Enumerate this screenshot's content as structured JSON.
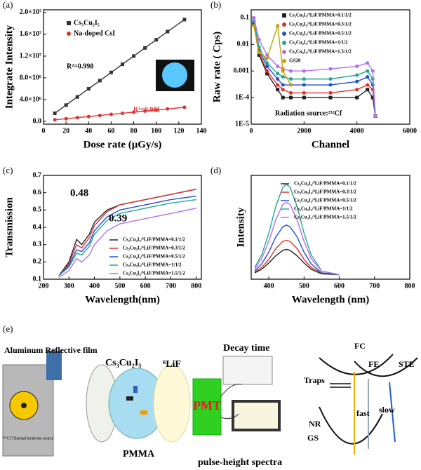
{
  "chart_data": [
    {
      "type": "line",
      "label": "(a)",
      "x_label": "Dose rate (μGy/s)",
      "y_label": "Integrate Intensity",
      "x": [
        10,
        20,
        30,
        40,
        50,
        60,
        70,
        80,
        90,
        100,
        110,
        125
      ],
      "series": [
        {
          "name": "Cs₃Cu₂I₅",
          "color": "#333333",
          "marker": "square",
          "values": [
            1500000,
            3000000,
            4500000,
            6000000,
            7500000,
            9000000,
            10500000,
            12000000,
            13500000,
            15000000,
            16500000,
            18700000
          ]
        },
        {
          "name": "Na-doped CsI",
          "color": "#e03030",
          "marker": "circle",
          "values": [
            300000,
            500000,
            700000,
            900000,
            1100000,
            1300000,
            1500000,
            1700000,
            1900000,
            2100000,
            2300000,
            2600000
          ]
        }
      ],
      "annotations": [
        "R²=0.998",
        "R²=0.981"
      ],
      "xlim": [
        0,
        140
      ],
      "xticks": [
        0,
        20,
        40,
        60,
        80,
        100,
        120,
        140
      ],
      "ylim": [
        -500000,
        20500000
      ],
      "yticks": [
        {
          "value": 0,
          "label": "0.0"
        },
        {
          "value": 4000000,
          "label": "4.0×10⁶"
        },
        {
          "value": 8000000,
          "label": "8.0×10⁶"
        },
        {
          "value": 12000000,
          "label": "1.2×10⁷"
        },
        {
          "value": 16000000,
          "label": "1.6×10⁷"
        },
        {
          "value": 20000000,
          "label": "2.0×10⁷"
        }
      ],
      "legend": "upper left"
    },
    {
      "type": "line",
      "label": "(b)",
      "x_label": "Channel",
      "y_label": "Raw rate ( Cps)",
      "log_y": true,
      "x": [
        100,
        300,
        600,
        1000,
        1200,
        1500,
        2000,
        3000,
        4000,
        4400,
        4600,
        4700
      ],
      "series": [
        {
          "name": "Cs₃Cu₂I₅/⁶LiF/PMMA=0.1/1/2",
          "color": "#222222",
          "marker": "square",
          "values": [
            0.06,
            0.004,
            0.0008,
            0.0002,
            0.0001,
            0.0001,
            0.0001,
            0.0001,
            0.0001,
            0.0002,
            0.0001,
            2e-05
          ]
        },
        {
          "name": "Cs₃Cu₂I₅/⁶LiF/PMMA=0.3/1/2",
          "color": "#e03030",
          "marker": "circle",
          "values": [
            0.07,
            0.005,
            0.001,
            0.0003,
            0.0002,
            0.00015,
            0.00015,
            0.00015,
            0.0002,
            0.0003,
            0.0002,
            2e-05
          ]
        },
        {
          "name": "Cs₃Cu₂I₅/⁶LiF/PMMA=0.5/1/2",
          "color": "#2050d0",
          "marker": "circle",
          "values": [
            0.07,
            0.006,
            0.0015,
            0.0005,
            0.0003,
            0.0003,
            0.0003,
            0.0003,
            0.0004,
            0.0006,
            0.0003,
            2e-05
          ]
        },
        {
          "name": "Cs₃Cu₂I₅/⁶LiF/PMMA=1/1/2",
          "color": "#20a890",
          "marker": "circle",
          "values": [
            0.08,
            0.008,
            0.002,
            0.0008,
            0.0006,
            0.0005,
            0.0005,
            0.0005,
            0.0007,
            0.001,
            0.0005,
            2e-05
          ]
        },
        {
          "name": "Cs₃Cu₂I₅/⁶LiF/PMMA=1.5/1/2",
          "color": "#b070f0",
          "marker": "circle",
          "values": [
            0.1,
            0.015,
            0.004,
            0.0015,
            0.0012,
            0.001,
            0.001,
            0.0012,
            0.0015,
            0.002,
            0.001,
            2e-05
          ]
        },
        {
          "name": "GS20",
          "color": "#c8a000",
          "marker": "circle",
          "values": [
            0.05,
            0.005,
            0.003,
            0.05,
            0.001,
            0.0003,
            null,
            null,
            null,
            null,
            null,
            null
          ]
        }
      ],
      "annotations": [
        "Radiation source:²⁵²Cf"
      ],
      "xlim": [
        0,
        6000
      ],
      "xticks": [
        0,
        2000,
        4000,
        6000
      ],
      "ylim": [
        1e-05,
        0.2
      ],
      "yticks": [
        {
          "value": 1e-05,
          "label": "1E-5"
        },
        {
          "value": 0.0001,
          "label": "1E-4"
        },
        0.001,
        0.01,
        0.1
      ],
      "legend": "upper right"
    },
    {
      "type": "line",
      "label": "(c)",
      "x_label": "Wavelength(nm)",
      "y_label": "Transmission",
      "x": [
        260,
        300,
        330,
        350,
        380,
        400,
        450,
        500,
        600,
        700,
        800
      ],
      "series": [
        {
          "name": "Cs₃Cu₂I₅/⁶LiF/PMMA=0.1/1/2",
          "color": "#222222",
          "values": [
            0.12,
            0.2,
            0.33,
            0.3,
            0.36,
            0.43,
            0.5,
            0.53,
            0.56,
            0.59,
            0.62
          ]
        },
        {
          "name": "Cs₃Cu₂I₅/⁶LiF/PMMA=0.3/1/2",
          "color": "#e03030",
          "values": [
            0.12,
            0.19,
            0.3,
            0.28,
            0.34,
            0.41,
            0.49,
            0.53,
            0.56,
            0.59,
            0.62
          ]
        },
        {
          "name": "Cs₃Cu₂I₅/⁶LiF/PMMA=0.5/1/2",
          "color": "#2050d0",
          "values": [
            0.12,
            0.18,
            0.27,
            0.26,
            0.31,
            0.38,
            0.46,
            0.5,
            0.53,
            0.56,
            0.58
          ]
        },
        {
          "name": "Cs₃Cu₂I₅/⁶LiF/PMMA=1/1/2",
          "color": "#20a890",
          "values": [
            0.12,
            0.17,
            0.25,
            0.24,
            0.29,
            0.36,
            0.44,
            0.48,
            0.51,
            0.54,
            0.56
          ]
        },
        {
          "name": "Cs₃Cu₂I₅/⁶LiF/PMMA=1.5/1/2",
          "color": "#b070f0",
          "values": [
            0.11,
            0.15,
            0.22,
            0.2,
            0.24,
            0.3,
            0.38,
            0.42,
            0.45,
            0.48,
            0.51
          ]
        }
      ],
      "annotations": [
        "0.48",
        "0.39"
      ],
      "xlim": [
        200,
        820
      ],
      "xticks": [
        200,
        300,
        400,
        500,
        600,
        700,
        800
      ],
      "ylim": [
        0.1,
        0.7
      ],
      "yticks": [
        0.1,
        0.2,
        0.3,
        0.4,
        0.5,
        0.6,
        0.7
      ],
      "legend": "lower right"
    },
    {
      "type": "line",
      "label": "(d)",
      "x_label": "Wavelength (nm)",
      "y_label": "Intensity",
      "x": [
        360,
        380,
        400,
        420,
        440,
        450,
        460,
        480,
        500,
        520,
        550,
        600
      ],
      "series": [
        {
          "name": "Cs₃Cu₂I₅/⁶LiF/PMMA=0.1/1/2",
          "color": "#222222",
          "values": [
            0.02,
            0.06,
            0.13,
            0.21,
            0.27,
            0.28,
            0.27,
            0.21,
            0.13,
            0.06,
            0.01,
            0
          ]
        },
        {
          "name": "Cs₃Cu₂I₅/⁶LiF/PMMA=0.3/1/2",
          "color": "#e03030",
          "values": [
            0.03,
            0.08,
            0.17,
            0.29,
            0.37,
            0.38,
            0.37,
            0.29,
            0.17,
            0.08,
            0.02,
            0
          ]
        },
        {
          "name": "Cs₃Cu₂I₅/⁶LiF/PMMA=0.5/1/2",
          "color": "#2050d0",
          "values": [
            0.04,
            0.12,
            0.25,
            0.42,
            0.53,
            0.55,
            0.53,
            0.42,
            0.25,
            0.12,
            0.02,
            0
          ]
        },
        {
          "name": "Cs₃Cu₂I₅/⁶LiF/PMMA=1/1/2",
          "color": "#20a890",
          "values": [
            0.08,
            0.22,
            0.46,
            0.76,
            0.97,
            1.0,
            0.97,
            0.76,
            0.46,
            0.22,
            0.04,
            0
          ]
        },
        {
          "name": "Cs₃Cu₂I₅/⁶LiF/PMMA=1.5/1/2",
          "color": "#b070f0",
          "values": [
            0.06,
            0.18,
            0.37,
            0.61,
            0.78,
            0.8,
            0.78,
            0.61,
            0.37,
            0.18,
            0.04,
            0
          ]
        }
      ],
      "annotations": [],
      "xlim": [
        350,
        800
      ],
      "xticks": [
        400,
        500,
        600,
        700,
        800
      ],
      "ylim": [
        -0.05,
        1.1
      ],
      "legend": "upper right"
    }
  ],
  "diagram": {
    "label": "(e)",
    "film": "Aluminum Reflective film",
    "crystal": "Cs₃Cu₂I₅",
    "lif": "⁶LiF",
    "source": "²⁵²Cf Thermal neutrons source",
    "pmma": "PMMA",
    "pmt": "PMT",
    "decay": "Decay time",
    "spectra": "pulse-height spectra",
    "fc": "FC",
    "fe": "FE",
    "ste": "STE",
    "traps": "Traps",
    "nr": "NR",
    "gs": "GS",
    "fast": "fast",
    "slow": "slow"
  }
}
